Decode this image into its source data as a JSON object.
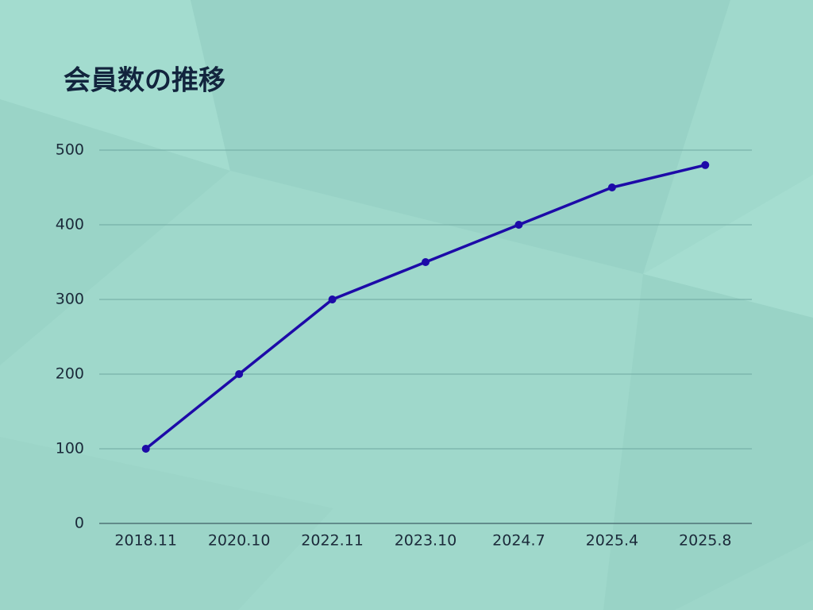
{
  "chart_data": {
    "type": "line",
    "title": "会員数の推移",
    "categories": [
      "2018.11",
      "2020.10",
      "2022.11",
      "2023.10",
      "2024.7",
      "2025.4",
      "2025.8"
    ],
    "values": [
      100,
      200,
      300,
      350,
      400,
      450,
      480
    ],
    "color": "#1d0aa8",
    "ylim": [
      0,
      500
    ],
    "yticks": [
      0,
      100,
      200,
      300,
      400,
      500
    ],
    "grid": true
  }
}
